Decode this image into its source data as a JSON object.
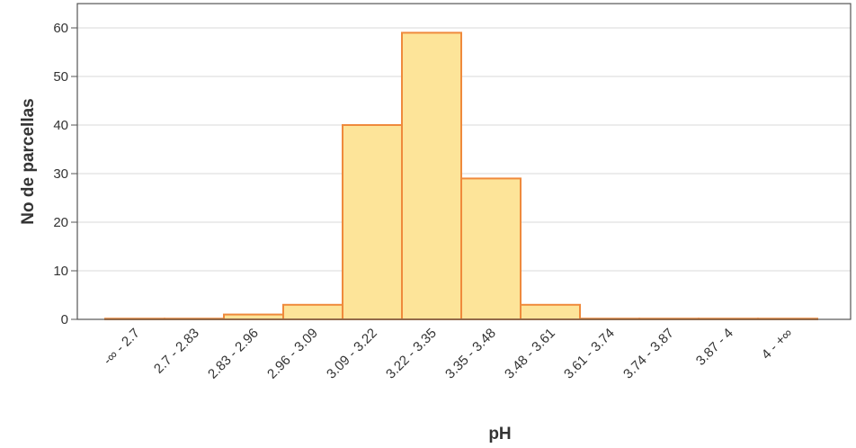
{
  "chart_data": {
    "type": "bar",
    "xlabel": "pH",
    "ylabel": "No de parcellas",
    "categories": [
      "-∞ - 2.7",
      "2.7 - 2.83",
      "2.83 - 2.96",
      "2.96 - 3.09",
      "3.09 - 3.22",
      "3.22 - 3.35",
      "3.35 - 3.48",
      "3.48 - 3.61",
      "3.61 - 3.74",
      "3.74 - 3.87",
      "3.87 - 4",
      "4 - +∞"
    ],
    "values": [
      0,
      0,
      1,
      3,
      40,
      59,
      29,
      3,
      0,
      0,
      0,
      0
    ],
    "ylim": [
      0,
      65
    ],
    "yticks": [
      0,
      10,
      20,
      30,
      40,
      50,
      60
    ],
    "grid": true,
    "legend": "none",
    "colors": {
      "bar_fill": "#fde499",
      "bar_stroke": "#ef8a3c",
      "grid": "#d9d9d9",
      "axis": "#555555",
      "text": "#333333"
    }
  }
}
